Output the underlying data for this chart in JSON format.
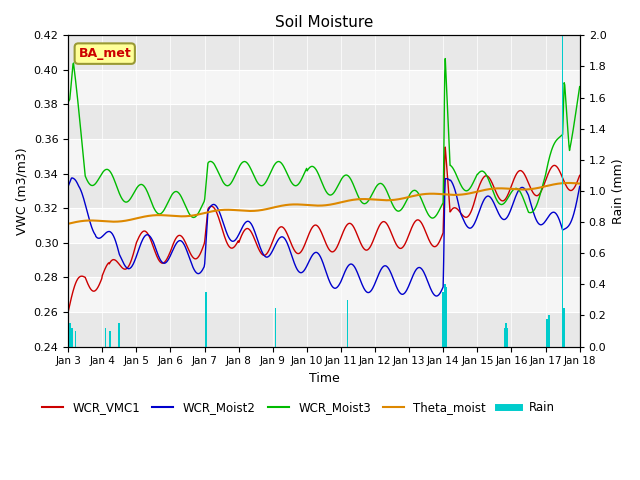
{
  "title": "Soil Moisture",
  "xlabel": "Time",
  "ylabel_left": "VWC (m3/m3)",
  "ylabel_right": "Rain (mm)",
  "ylim_left": [
    0.24,
    0.42
  ],
  "ylim_right": [
    0.0,
    2.0
  ],
  "yticks_left": [
    0.24,
    0.26,
    0.28,
    0.3,
    0.32,
    0.34,
    0.36,
    0.38,
    0.4,
    0.42
  ],
  "yticks_right": [
    0.0,
    0.2,
    0.4,
    0.6,
    0.8,
    1.0,
    1.2,
    1.4,
    1.6,
    1.8,
    2.0
  ],
  "colors": {
    "WCR_VMC1": "#cc0000",
    "WCR_Moist2": "#0000cc",
    "WCR_Moist3": "#00bb00",
    "Theta_moist": "#dd8800",
    "Rain": "#00cccc"
  },
  "bg_color": "#e8e8e8",
  "bg_stripe_color": "#f5f5f5",
  "annotation_text": "BA_met",
  "annotation_color": "#cc0000",
  "annotation_bg": "#ffff99",
  "annotation_border": "#999933"
}
